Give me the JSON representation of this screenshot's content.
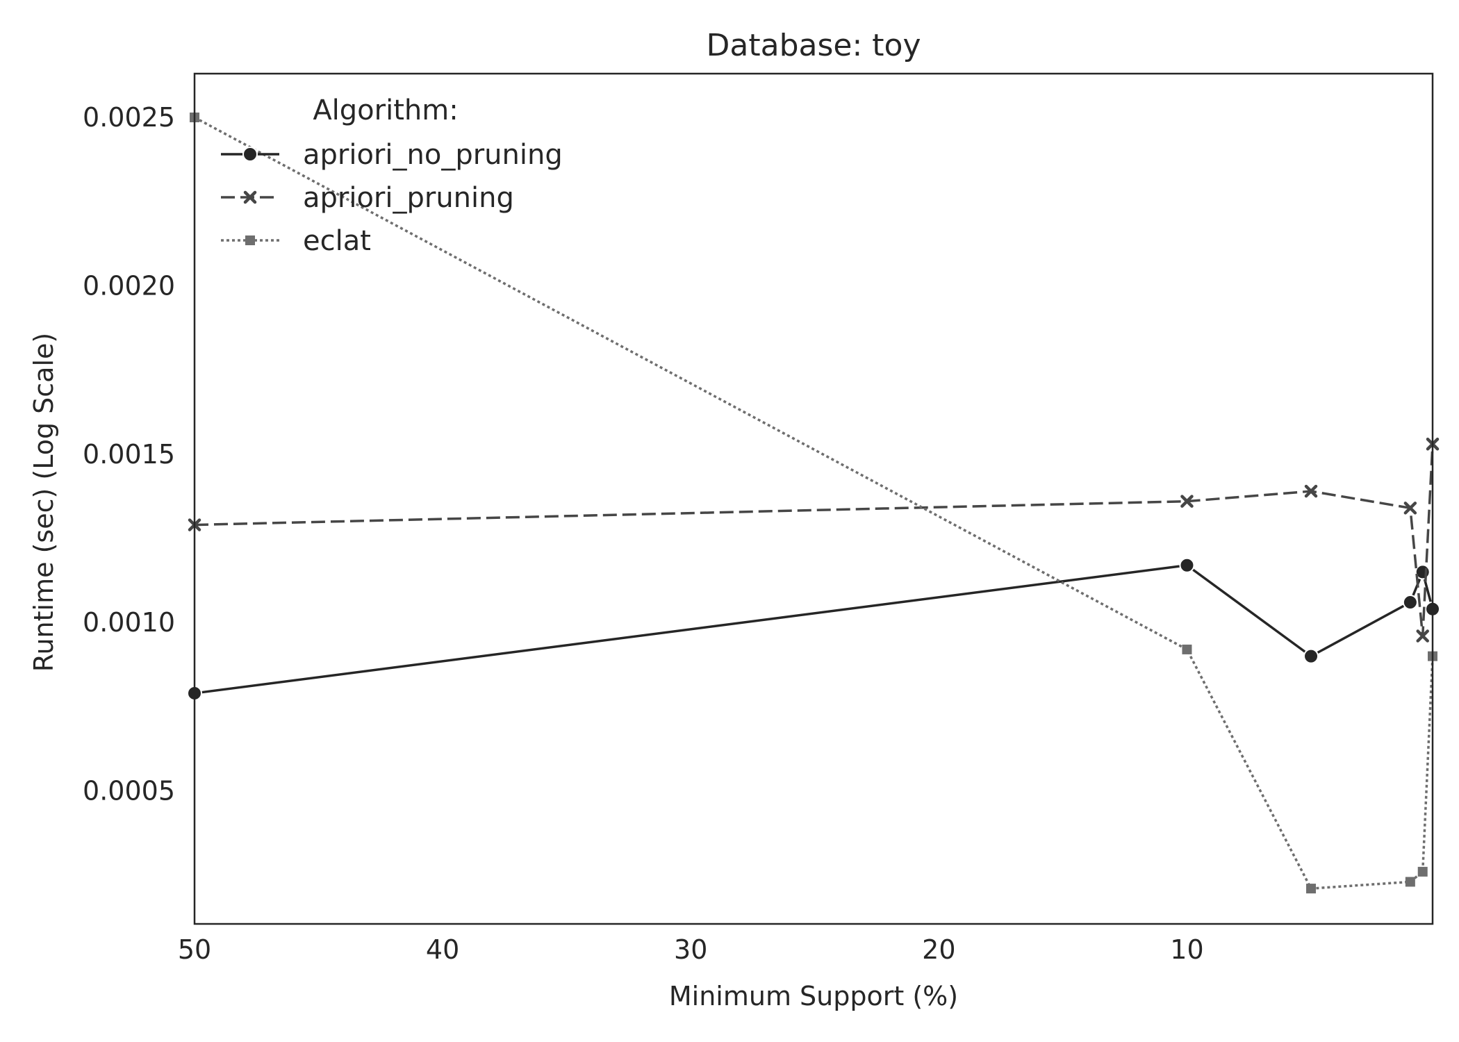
{
  "chart_data": {
    "type": "line",
    "title": "Database: toy",
    "xlabel": "Minimum Support (%)",
    "ylabel": "Runtime (sec) (Log Scale)",
    "xlim": [
      50,
      0.1
    ],
    "ylim": [
      0.000105,
      0.00263
    ],
    "x_ticks": [
      50,
      40,
      30,
      20,
      10
    ],
    "x_tick_labels": [
      "50",
      "40",
      "30",
      "20",
      "10"
    ],
    "y_ticks": [
      0.0005,
      0.001,
      0.0015,
      0.002,
      0.0025
    ],
    "y_tick_labels": [
      "0.0005",
      "0.0010",
      "0.0015",
      "0.0020",
      "0.0025"
    ],
    "grid": false,
    "legend": {
      "title": "Algorithm:",
      "placement": "top-left"
    },
    "series": [
      {
        "name": "apriori_no_pruning",
        "style": "solid",
        "marker": "circle",
        "color": "#262626",
        "x": [
          50,
          10,
          5,
          1,
          0.5,
          0.1
        ],
        "y": [
          0.00079,
          0.00117,
          0.0009,
          0.00106,
          0.00115,
          0.00104
        ]
      },
      {
        "name": "apriori_pruning",
        "style": "dashed",
        "marker": "x",
        "color": "#464646",
        "x": [
          50,
          10,
          5,
          1,
          0.5,
          0.1
        ],
        "y": [
          0.00129,
          0.00136,
          0.00139,
          0.00134,
          0.00096,
          0.00153
        ]
      },
      {
        "name": "eclat",
        "style": "dotted",
        "marker": "square",
        "color": "#6e6e6e",
        "x": [
          50,
          10,
          5,
          1,
          0.5,
          0.1
        ],
        "y": [
          0.0025,
          0.00092,
          0.00021,
          0.00023,
          0.00026,
          0.0009
        ]
      }
    ]
  }
}
